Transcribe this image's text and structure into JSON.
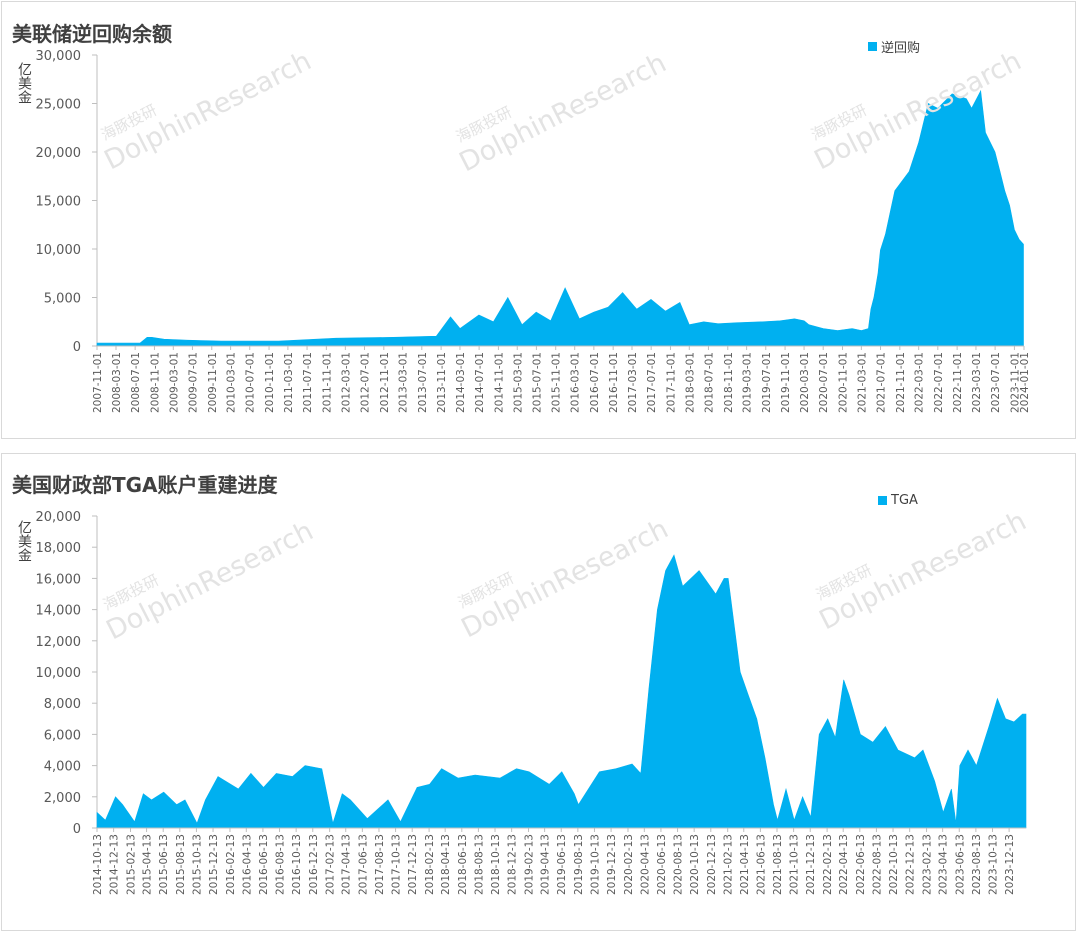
{
  "colors": {
    "area": "#00b0f0",
    "axis": "#bfbfbf",
    "text": "#595959"
  },
  "watermark": {
    "cn": "海豚投研",
    "en": "DolphinResearch"
  },
  "chart_data": [
    {
      "type": "area",
      "title": "美联储逆回购余额",
      "ylabel": "亿美金",
      "legend": "逆回购",
      "legend_position": "top-right",
      "ylim": [
        0,
        30000
      ],
      "yticks": [
        0,
        5000,
        10000,
        15000,
        20000,
        25000,
        30000
      ],
      "ytick_labels": [
        "0",
        "5,000",
        "10,000",
        "15,000",
        "20,000",
        "25,000",
        "30,000"
      ],
      "x_range": [
        "2007-11-01",
        "2024-01-01"
      ],
      "xtick_labels": [
        "2007-11-01",
        "2008-03-01",
        "2008-07-01",
        "2008-11-01",
        "2009-03-01",
        "2009-07-01",
        "2009-11-01",
        "2010-03-01",
        "2010-07-01",
        "2010-11-01",
        "2011-03-01",
        "2011-07-01",
        "2011-11-01",
        "2012-03-01",
        "2012-07-01",
        "2012-11-01",
        "2013-03-01",
        "2013-07-01",
        "2013-11-01",
        "2014-03-01",
        "2014-07-01",
        "2014-11-01",
        "2015-03-01",
        "2015-07-01",
        "2015-11-01",
        "2016-03-01",
        "2016-07-01",
        "2016-11-01",
        "2017-03-01",
        "2017-07-01",
        "2017-11-01",
        "2018-03-01",
        "2018-07-01",
        "2018-11-01",
        "2019-03-01",
        "2019-07-01",
        "2019-11-01",
        "2020-03-01",
        "2020-07-01",
        "2020-11-01",
        "2021-03-01",
        "2021-07-01",
        "2021-11-01",
        "2022-03-01",
        "2022-07-01",
        "2022-11-01",
        "2023-03-01",
        "2023-07-01",
        "2023-11-01"
      ],
      "xtick_labels_extra": [
        "2024-01-01"
      ],
      "series": [
        {
          "name": "逆回购",
          "x": [
            "2007-11-01",
            "2008-08-01",
            "2008-09-15",
            "2008-10-15",
            "2009-01-01",
            "2009-06-01",
            "2010-01-01",
            "2011-01-01",
            "2012-01-01",
            "2013-01-01",
            "2013-09-01",
            "2013-10-01",
            "2013-12-31",
            "2014-03-01",
            "2014-06-30",
            "2014-09-30",
            "2014-12-31",
            "2015-03-31",
            "2015-06-30",
            "2015-09-30",
            "2015-12-31",
            "2016-03-31",
            "2016-06-30",
            "2016-09-30",
            "2016-12-31",
            "2017-03-31",
            "2017-06-30",
            "2017-09-30",
            "2017-12-31",
            "2018-03-01",
            "2018-06-01",
            "2018-09-01",
            "2019-01-01",
            "2019-06-01",
            "2019-09-30",
            "2019-12-31",
            "2020-03-01",
            "2020-04-01",
            "2020-07-01",
            "2020-10-01",
            "2021-01-01",
            "2021-03-01",
            "2021-04-15",
            "2021-05-01",
            "2021-05-20",
            "2021-06-15",
            "2021-06-30",
            "2021-08-01",
            "2021-09-30",
            "2021-12-31",
            "2022-03-01",
            "2022-05-01",
            "2022-06-30",
            "2022-09-30",
            "2022-12-30",
            "2023-02-01",
            "2023-03-31",
            "2023-05-01",
            "2023-06-30",
            "2023-08-01",
            "2023-09-01",
            "2023-10-01",
            "2023-11-01",
            "2023-12-01",
            "2023-12-29"
          ],
          "values": [
            300,
            300,
            900,
            900,
            700,
            600,
            500,
            500,
            800,
            900,
            1000,
            1000,
            3000,
            1800,
            3200,
            2500,
            5000,
            2200,
            3500,
            2600,
            6000,
            2800,
            3500,
            4000,
            5500,
            3800,
            4800,
            3600,
            4500,
            2200,
            2500,
            2300,
            2400,
            2500,
            2600,
            2800,
            2600,
            2200,
            1800,
            1600,
            1800,
            1600,
            1800,
            3800,
            5000,
            7500,
            9900,
            11500,
            16000,
            18000,
            21000,
            25000,
            24500,
            26000,
            25500,
            24500,
            26300,
            22000,
            20000,
            18000,
            16000,
            14500,
            12000,
            11000,
            10500
          ]
        }
      ]
    },
    {
      "type": "area",
      "title": "美国财政部TGA账户重建进度",
      "ylabel": "亿美金",
      "legend": "TGA",
      "legend_position": "top-right",
      "ylim": [
        0,
        20000
      ],
      "yticks": [
        0,
        2000,
        4000,
        6000,
        8000,
        10000,
        12000,
        14000,
        16000,
        18000,
        20000
      ],
      "ytick_labels": [
        "0",
        "2,000",
        "4,000",
        "6,000",
        "8,000",
        "10,000",
        "12,000",
        "14,000",
        "16,000",
        "18,000",
        "20,000"
      ],
      "x_range": [
        "2014-10-13",
        "2024-02-13"
      ],
      "xtick_labels": [
        "2014-10-13",
        "2014-12-13",
        "2015-02-13",
        "2015-04-13",
        "2015-06-13",
        "2015-08-13",
        "2015-10-13",
        "2015-12-13",
        "2016-02-13",
        "2016-04-13",
        "2016-06-13",
        "2016-08-13",
        "2016-10-13",
        "2016-12-13",
        "2017-02-13",
        "2017-04-13",
        "2017-06-13",
        "2017-08-13",
        "2017-10-13",
        "2017-12-13",
        "2018-02-13",
        "2018-04-13",
        "2018-06-13",
        "2018-08-13",
        "2018-10-13",
        "2018-12-13",
        "2019-02-13",
        "2019-04-13",
        "2019-06-13",
        "2019-08-13",
        "2019-10-13",
        "2019-12-13",
        "2020-02-13",
        "2020-04-13",
        "2020-06-13",
        "2020-08-13",
        "2020-10-13",
        "2020-12-13",
        "2021-02-13",
        "2021-04-13",
        "2021-06-13",
        "2021-08-13",
        "2021-10-13",
        "2021-12-13",
        "2022-02-13",
        "2022-04-13",
        "2022-06-13",
        "2022-08-13",
        "2022-10-13",
        "2022-12-13",
        "2023-02-13",
        "2023-04-13",
        "2023-06-13",
        "2023-08-13",
        "2023-10-13",
        "2023-12-13"
      ],
      "series": [
        {
          "name": "TGA",
          "x": [
            "2014-10-13",
            "2014-11-13",
            "2014-12-20",
            "2015-01-15",
            "2015-02-28",
            "2015-04-01",
            "2015-05-01",
            "2015-06-15",
            "2015-08-01",
            "2015-09-01",
            "2015-10-15",
            "2015-11-15",
            "2015-12-31",
            "2016-03-15",
            "2016-04-30",
            "2016-06-15",
            "2016-08-01",
            "2016-09-30",
            "2016-11-15",
            "2017-01-15",
            "2017-02-25",
            "2017-03-31",
            "2017-04-30",
            "2017-07-01",
            "2017-09-15",
            "2017-10-31",
            "2017-12-31",
            "2018-02-15",
            "2018-03-31",
            "2018-05-31",
            "2018-08-01",
            "2018-10-31",
            "2018-12-31",
            "2019-02-15",
            "2019-04-30",
            "2019-06-15",
            "2019-07-31",
            "2019-08-15",
            "2019-10-31",
            "2019-12-31",
            "2020-02-28",
            "2020-03-31",
            "2020-04-30",
            "2020-05-31",
            "2020-06-30",
            "2020-07-31",
            "2020-09-01",
            "2020-10-31",
            "2020-12-31",
            "2021-01-31",
            "2021-02-15",
            "2021-03-31",
            "2021-04-30",
            "2021-05-31",
            "2021-06-30",
            "2021-07-31",
            "2021-08-15",
            "2021-09-15",
            "2021-10-15",
            "2021-11-15",
            "2021-12-15",
            "2022-01-15",
            "2022-02-15",
            "2022-03-15",
            "2022-04-15",
            "2022-05-05",
            "2022-06-15",
            "2022-07-31",
            "2022-09-15",
            "2022-10-31",
            "2022-12-31",
            "2023-01-31",
            "2023-03-15",
            "2023-04-15",
            "2023-05-15",
            "2023-06-01",
            "2023-06-15",
            "2023-07-15",
            "2023-08-15",
            "2023-09-30",
            "2023-10-31",
            "2023-11-30",
            "2023-12-31",
            "2024-01-31",
            "2024-02-13"
          ],
          "values": [
            1000,
            500,
            2000,
            1500,
            400,
            2200,
            1800,
            2300,
            1500,
            1800,
            300,
            1800,
            3300,
            2500,
            3500,
            2600,
            3500,
            3300,
            4000,
            3800,
            300,
            2200,
            1800,
            600,
            1800,
            400,
            2600,
            2800,
            3800,
            3200,
            3400,
            3200,
            3800,
            3600,
            2800,
            3600,
            2200,
            1500,
            3600,
            3800,
            4100,
            3500,
            9000,
            14000,
            16500,
            17500,
            15500,
            16500,
            15000,
            16000,
            16000,
            10000,
            8500,
            7000,
            4500,
            1500,
            500,
            2500,
            500,
            2000,
            700,
            6000,
            7000,
            5800,
            9500,
            8500,
            6000,
            5500,
            6500,
            5000,
            4500,
            5000,
            3000,
            1000,
            2500,
            300,
            4000,
            5000,
            4000,
            6500,
            8300,
            7000,
            6800,
            7300,
            7300
          ]
        }
      ]
    }
  ]
}
